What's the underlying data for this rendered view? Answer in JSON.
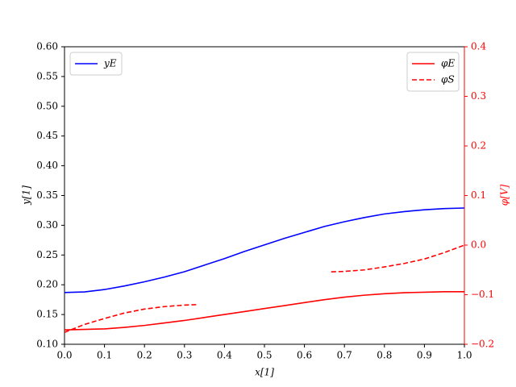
{
  "chart_data": {
    "type": "line",
    "xlabel": "x[1]",
    "ylabel": "y[1]",
    "y2label": "φ[V]",
    "xlim": [
      0,
      1
    ],
    "ylim": [
      0.1,
      0.6
    ],
    "y2lim": [
      -0.2,
      0.4
    ],
    "xticks": [
      {
        "value": 0,
        "label": "0.0"
      },
      0.1,
      0.2,
      0.3,
      0.4,
      0.5,
      0.6,
      0.7,
      0.8,
      0.9,
      {
        "value": 1,
        "label": "1.0"
      }
    ],
    "yticks": [
      {
        "value": 0.1,
        "label": "0.10"
      },
      0.15,
      {
        "value": 0.2,
        "label": "0.20"
      },
      0.25,
      {
        "value": 0.3,
        "label": "0.30"
      },
      0.35,
      {
        "value": 0.4,
        "label": "0.40"
      },
      0.45,
      {
        "value": 0.5,
        "label": "0.50"
      },
      0.55,
      {
        "value": 0.6,
        "label": "0.60"
      }
    ],
    "y2ticks": [
      {
        "value": -0.2,
        "label": "−0.2"
      },
      {
        "value": -0.1,
        "label": "−0.1"
      },
      {
        "value": 0,
        "label": "0.0"
      },
      0.1,
      0.2,
      0.3,
      0.4
    ],
    "y2color": "#ff0000",
    "series": [
      {
        "name": "yE",
        "color": "#0000ff",
        "dash": false,
        "axis": "y",
        "legend": "upper left",
        "x": [
          0,
          0.05,
          0.1,
          0.15,
          0.2,
          0.25,
          0.3,
          0.35,
          0.4,
          0.45,
          0.5,
          0.55,
          0.6,
          0.65,
          0.7,
          0.75,
          0.8,
          0.85,
          0.9,
          0.95,
          1
        ],
        "values": [
          0.187,
          0.188,
          0.192,
          0.198,
          0.205,
          0.213,
          0.222,
          0.233,
          0.244,
          0.256,
          0.267,
          0.278,
          0.288,
          0.298,
          0.306,
          0.313,
          0.319,
          0.323,
          0.326,
          0.328,
          0.329
        ]
      },
      {
        "name": "φE",
        "color": "#ff0000",
        "dash": false,
        "axis": "y2",
        "legend": "upper right",
        "x": [
          0,
          0.05,
          0.1,
          0.15,
          0.2,
          0.25,
          0.3,
          0.35,
          0.4,
          0.45,
          0.5,
          0.55,
          0.6,
          0.65,
          0.7,
          0.75,
          0.8,
          0.85,
          0.9,
          0.95,
          1
        ],
        "values": [
          -0.171,
          -0.17,
          -0.169,
          -0.166,
          -0.162,
          -0.157,
          -0.152,
          -0.146,
          -0.14,
          -0.134,
          -0.128,
          -0.122,
          -0.116,
          -0.11,
          -0.105,
          -0.101,
          -0.098,
          -0.096,
          -0.095,
          -0.094,
          -0.094
        ]
      },
      {
        "name": "φS",
        "color": "#ff0000",
        "dash": true,
        "axis": "y2",
        "legend": "upper right",
        "x": [
          0,
          0.05,
          0.1,
          0.15,
          0.2,
          0.25,
          0.3,
          0.333,
          0.5,
          0.667,
          0.7,
          0.75,
          0.8,
          0.85,
          0.9,
          0.95,
          1
        ],
        "values": [
          -0.176,
          -0.16,
          -0.148,
          -0.137,
          -0.129,
          -0.124,
          -0.121,
          -0.12,
          null,
          -0.054,
          -0.053,
          -0.05,
          -0.044,
          -0.037,
          -0.028,
          -0.015,
          0
        ]
      }
    ]
  }
}
